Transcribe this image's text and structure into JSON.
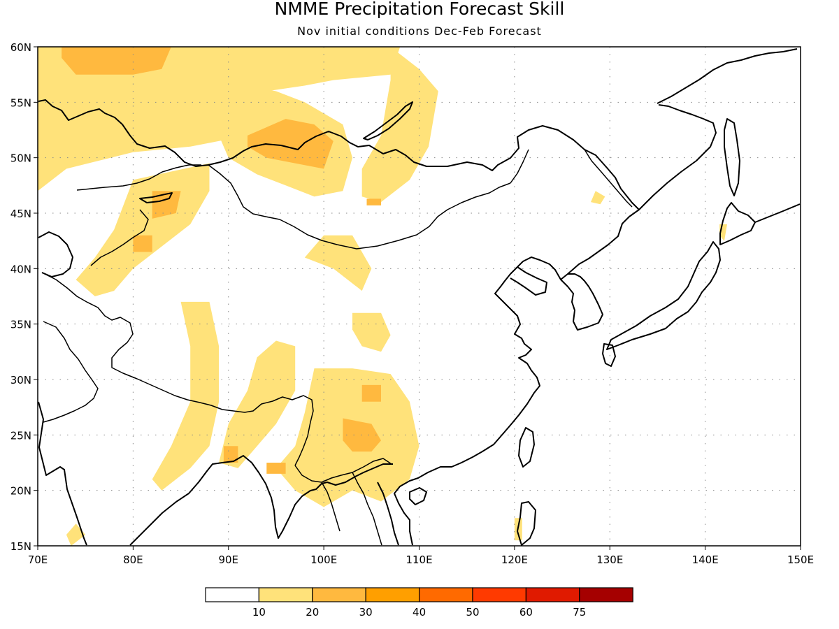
{
  "title": "NMME Precipitation Forecast Skill",
  "subtitle": "Nov initial conditions  Dec-Feb Forecast",
  "map": {
    "lon_range": [
      70,
      150
    ],
    "lat_range": [
      15,
      60
    ],
    "lon_ticks": [
      {
        "value": 70,
        "label": "70E"
      },
      {
        "value": 80,
        "label": "80E"
      },
      {
        "value": 90,
        "label": "90E"
      },
      {
        "value": 100,
        "label": "100E"
      },
      {
        "value": 110,
        "label": "110E"
      },
      {
        "value": 120,
        "label": "120E"
      },
      {
        "value": 130,
        "label": "130E"
      },
      {
        "value": 140,
        "label": "140E"
      },
      {
        "value": 150,
        "label": "150E"
      }
    ],
    "lat_ticks": [
      {
        "value": 15,
        "label": "15N"
      },
      {
        "value": 20,
        "label": "20N"
      },
      {
        "value": 25,
        "label": "25N"
      },
      {
        "value": 30,
        "label": "30N"
      },
      {
        "value": 35,
        "label": "35N"
      },
      {
        "value": 40,
        "label": "40N"
      },
      {
        "value": 45,
        "label": "45N"
      },
      {
        "value": 50,
        "label": "50N"
      },
      {
        "value": 55,
        "label": "55N"
      },
      {
        "value": 60,
        "label": "60N"
      }
    ],
    "grid": true
  },
  "colorbar": {
    "colors": [
      "#ffffff",
      "#ffe27a",
      "#ffb93f",
      "#ff9f00",
      "#ff6a00",
      "#ff3a00",
      "#e01a00",
      "#a50000"
    ],
    "labels": [
      "10",
      "20",
      "30",
      "40",
      "50",
      "60",
      "75"
    ]
  },
  "skill_regions": [
    {
      "level": "10-20",
      "color": "#ffe27a",
      "polygons": [
        [
          [
            70,
            60
          ],
          [
            108,
            60
          ],
          [
            107,
            57.5
          ],
          [
            101,
            57
          ],
          [
            98,
            56.5
          ],
          [
            94,
            56
          ],
          [
            92,
            52
          ],
          [
            86,
            51
          ],
          [
            80,
            50.5
          ],
          [
            73,
            49
          ],
          [
            70,
            47
          ]
        ],
        [
          [
            80,
            48
          ],
          [
            88,
            49.5
          ],
          [
            88,
            47
          ],
          [
            86,
            44
          ],
          [
            83,
            42
          ],
          [
            80,
            40
          ],
          [
            78,
            38
          ],
          [
            76,
            37.5
          ],
          [
            74,
            39
          ],
          [
            76,
            41
          ],
          [
            78,
            43.5
          ]
        ],
        [
          [
            92,
            56.5
          ],
          [
            95,
            56
          ],
          [
            98,
            55
          ],
          [
            102,
            53
          ],
          [
            103,
            50
          ],
          [
            102,
            47
          ],
          [
            99,
            46.5
          ],
          [
            96,
            47.5
          ],
          [
            93,
            48.5
          ],
          [
            90,
            50
          ],
          [
            89,
            52
          ]
        ],
        [
          [
            107,
            60
          ],
          [
            110,
            58
          ],
          [
            112,
            56
          ],
          [
            111,
            51
          ],
          [
            109,
            48
          ],
          [
            106,
            46
          ],
          [
            104,
            46.5
          ],
          [
            104,
            49
          ],
          [
            106,
            52
          ],
          [
            107,
            57
          ]
        ],
        [
          [
            85,
            37
          ],
          [
            88,
            37
          ],
          [
            89,
            33
          ],
          [
            89,
            28
          ],
          [
            88,
            24
          ],
          [
            86,
            22
          ],
          [
            83,
            20
          ],
          [
            82,
            21
          ],
          [
            84,
            24
          ],
          [
            86,
            28
          ],
          [
            86,
            33
          ]
        ],
        [
          [
            95,
            33.5
          ],
          [
            97,
            33
          ],
          [
            97,
            29
          ],
          [
            95,
            26
          ],
          [
            93,
            24
          ],
          [
            91,
            22
          ],
          [
            89,
            22.5
          ],
          [
            90,
            26
          ],
          [
            92,
            29
          ],
          [
            93,
            32
          ]
        ],
        [
          [
            99,
            31
          ],
          [
            103,
            31
          ],
          [
            107,
            30.5
          ],
          [
            109,
            28
          ],
          [
            110,
            24
          ],
          [
            109,
            21
          ],
          [
            106,
            19
          ],
          [
            103,
            20
          ],
          [
            100,
            18.5
          ],
          [
            97,
            20
          ],
          [
            95,
            22
          ],
          [
            97,
            24
          ],
          [
            98,
            27
          ]
        ],
        [
          [
            100,
            43
          ],
          [
            103,
            43
          ],
          [
            105,
            40
          ],
          [
            104,
            38
          ],
          [
            101,
            40
          ],
          [
            98,
            41
          ]
        ],
        [
          [
            103,
            36
          ],
          [
            106,
            36
          ],
          [
            107,
            34
          ],
          [
            106,
            32.5
          ],
          [
            104,
            33
          ],
          [
            103,
            34.5
          ]
        ],
        [
          [
            128.5,
            47
          ],
          [
            129.5,
            46.5
          ],
          [
            129,
            45.8
          ],
          [
            128,
            46
          ]
        ],
        [
          [
            141.5,
            44
          ],
          [
            142.3,
            44
          ],
          [
            142,
            42.5
          ],
          [
            141.5,
            43
          ]
        ],
        [
          [
            120,
            17.5
          ],
          [
            120.8,
            17.5
          ],
          [
            120.8,
            15.5
          ],
          [
            120,
            15.5
          ]
        ],
        [
          [
            74,
            17
          ],
          [
            75,
            16
          ],
          [
            73.5,
            15
          ],
          [
            73,
            16
          ]
        ]
      ]
    },
    {
      "level": "20-30",
      "color": "#ffb93f",
      "polygons": [
        [
          [
            72.5,
            60
          ],
          [
            84,
            60
          ],
          [
            83,
            58
          ],
          [
            80,
            57.5
          ],
          [
            74,
            57.5
          ],
          [
            72.5,
            59
          ]
        ],
        [
          [
            92,
            52
          ],
          [
            96,
            53.5
          ],
          [
            99,
            53
          ],
          [
            101,
            51.5
          ],
          [
            100,
            49
          ],
          [
            97,
            49.5
          ],
          [
            94,
            50
          ],
          [
            92,
            51
          ]
        ],
        [
          [
            82,
            47
          ],
          [
            85,
            47
          ],
          [
            84.5,
            45
          ],
          [
            82,
            44.5
          ]
        ],
        [
          [
            80,
            43
          ],
          [
            82,
            43
          ],
          [
            82,
            41.5
          ],
          [
            80,
            41.5
          ]
        ],
        [
          [
            102,
            26.5
          ],
          [
            105,
            26
          ],
          [
            106,
            24.5
          ],
          [
            105,
            23.5
          ],
          [
            103,
            23.5
          ],
          [
            102,
            24.5
          ]
        ],
        [
          [
            104,
            29.5
          ],
          [
            106,
            29.5
          ],
          [
            106,
            28
          ],
          [
            104,
            28
          ]
        ],
        [
          [
            94,
            22.5
          ],
          [
            96,
            22.5
          ],
          [
            96,
            21.5
          ],
          [
            94,
            21.5
          ]
        ],
        [
          [
            104.5,
            46.3
          ],
          [
            106,
            46.3
          ],
          [
            106,
            45.7
          ],
          [
            104.5,
            45.7
          ]
        ],
        [
          [
            89.5,
            24
          ],
          [
            91,
            24
          ],
          [
            91,
            22.5
          ],
          [
            89.5,
            22.5
          ]
        ]
      ]
    }
  ]
}
